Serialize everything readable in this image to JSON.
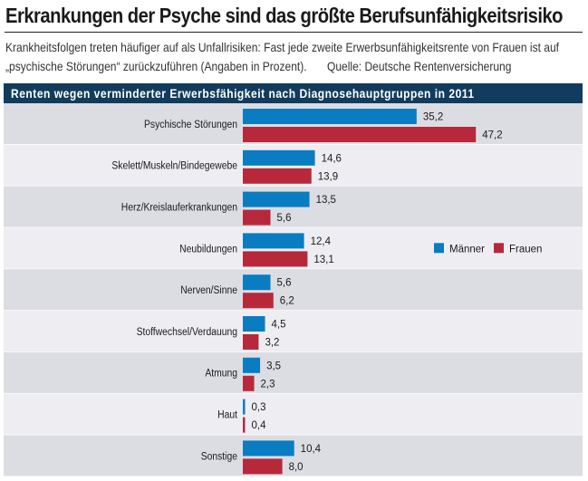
{
  "headline": "Erkrankungen der Psyche sind das größte Berufsunfähigkeitsrisiko",
  "subtitle": {
    "line1": "Krankheitsfolgen treten häufiger auf als Unfallrisiken: Fast jede zweite Erwerbsunfähigkeitsrente von Frauen ist auf",
    "line2": "„psychische Störungen“ zurückzuführen (Angaben in Prozent).",
    "source": "Quelle: Deutsche Rentenversicherung"
  },
  "chart_data": {
    "type": "bar",
    "orientation": "horizontal",
    "title": "Renten wegen verminderter Erwerbsfähigkeit nach Diagnosehauptgruppen in 2011",
    "unit": "%",
    "categories": [
      "Psychische Störungen",
      "Skelett/Muskeln/Bindegewebe",
      "Herz/Kreislauferkrankungen",
      "Neubildungen",
      "Nerven/Sinne",
      "Stoffwechsel/Verdauung",
      "Atmung",
      "Haut",
      "Sonstige"
    ],
    "series": [
      {
        "name": "Männer",
        "color": "#0a7cc1",
        "values": [
          35.2,
          14.6,
          13.5,
          12.4,
          5.6,
          4.5,
          3.5,
          0.3,
          10.4
        ],
        "labels": [
          "35,2",
          "14,6",
          "13,5",
          "12,4",
          "5,6",
          "4,5",
          "3,5",
          "0,3",
          "10,4"
        ]
      },
      {
        "name": "Frauen",
        "color": "#b7293a",
        "values": [
          47.2,
          13.9,
          5.6,
          13.1,
          6.2,
          3.2,
          2.3,
          0.4,
          8.0
        ],
        "labels": [
          "47,2",
          "13,9",
          "5,6",
          "13,1",
          "6,2",
          "3,2",
          "2,3",
          "0,4",
          "8,0"
        ]
      }
    ],
    "legend_position": "right",
    "row_colors": [
      "#dcdde3",
      "#eeeef2"
    ],
    "banner_color": "#123c5d"
  }
}
